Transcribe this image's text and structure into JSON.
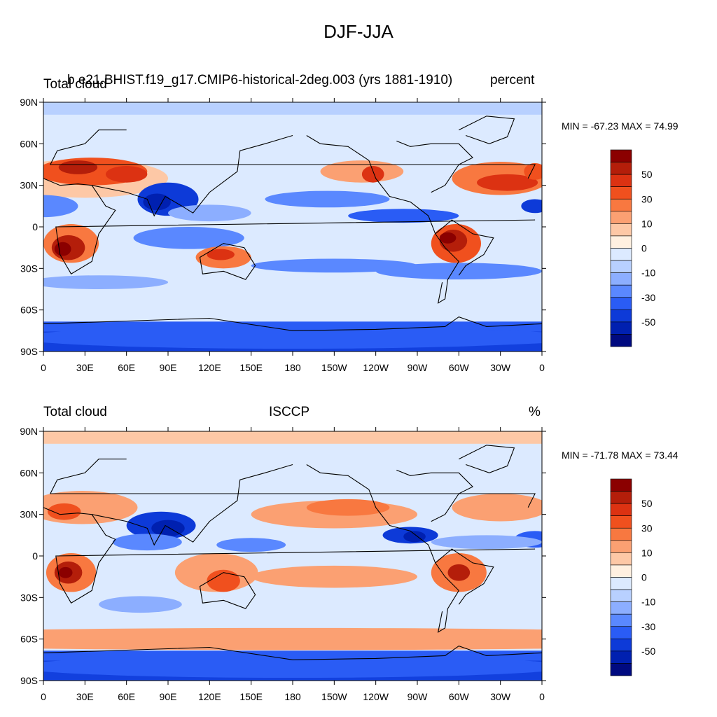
{
  "figure": {
    "title": "DJF-JJA"
  },
  "panels": [
    {
      "left_title": "Total cloud",
      "center_title": "b.e21.BHIST.f19_g17.CMIP6-historical-2deg.003 (yrs 1881-1910)",
      "right_title": "percent",
      "minmax": "MIN = -67.23 MAX =  74.99",
      "lat_ticks": [
        "90N",
        "60N",
        "30N",
        "0",
        "30S",
        "60S",
        "90S"
      ],
      "lon_ticks": [
        "0",
        "30E",
        "60E",
        "90E",
        "120E",
        "150E",
        "180",
        "150W",
        "120W",
        "90W",
        "60W",
        "30W",
        "0"
      ],
      "colorbar_labels": [
        "50",
        "30",
        "10",
        "0",
        "-10",
        "-30",
        "-50"
      ]
    },
    {
      "left_title": "Total cloud",
      "center_title": "ISCCP",
      "right_title": "%",
      "minmax": "MIN = -71.78 MAX =  73.44",
      "lat_ticks": [
        "90N",
        "60N",
        "30N",
        "0",
        "30S",
        "60S",
        "90S"
      ],
      "lon_ticks": [
        "0",
        "30E",
        "60E",
        "90E",
        "120E",
        "150E",
        "180",
        "150W",
        "120W",
        "90W",
        "60W",
        "30W",
        "0"
      ],
      "colorbar_labels": [
        "50",
        "30",
        "10",
        "0",
        "-10",
        "-30",
        "-50"
      ]
    }
  ],
  "colorbar_colors": [
    "#8b0000",
    "#b41e0a",
    "#dc3212",
    "#f0501e",
    "#f87840",
    "#fba072",
    "#fdc8a6",
    "#fff0e0",
    "#dceaff",
    "#b8d0ff",
    "#8caeff",
    "#5a88ff",
    "#2a5cf5",
    "#0d3ad8",
    "#0020b0",
    "#000a80"
  ],
  "map_colors": {
    "ocean_neutral": "#dceaff",
    "coast": "#000000"
  }
}
